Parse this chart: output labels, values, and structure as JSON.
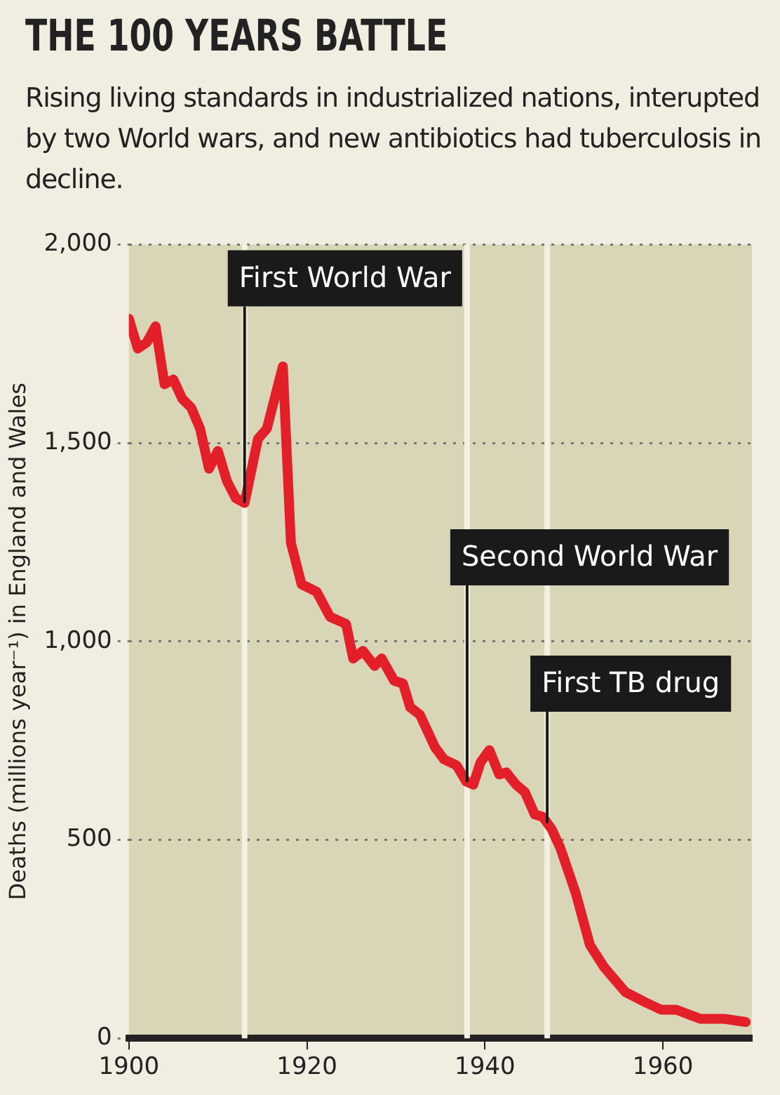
{
  "chart_data": {
    "type": "line",
    "title": "THE 100 YEARS BATTLE",
    "subtitle": "Rising living standards in industrialized nations, interupted by two World wars, and new antibiotics had tuberculosis in decline.",
    "ylabel": "Deaths (millions year⁻¹) in England and Wales",
    "x": [
      1900,
      1901,
      1902,
      1903,
      1904,
      1905,
      1906,
      1907,
      1908,
      1909,
      1910,
      1911,
      1912,
      1913,
      1914.5,
      1915.5,
      1917.3,
      1918.2,
      1919.4,
      1921.1,
      1922.6,
      1924.4,
      1925.2,
      1926.3,
      1927.6,
      1928.4,
      1929.8,
      1930.8,
      1931.6,
      1932.7,
      1934.4,
      1935.4,
      1936.8,
      1937.9,
      1938.7,
      1939.5,
      1940.5,
      1941.6,
      1942.4,
      1943.5,
      1944.5,
      1945.6,
      1946.5,
      1947.5,
      1948.5,
      1950.2,
      1951.8,
      1953.4,
      1955.8,
      1958,
      1959.8,
      1961.5,
      1964.2,
      1966.9,
      1969.3
    ],
    "series": [
      {
        "color": "#e3202a",
        "values": [
          1813,
          1738,
          1753,
          1794,
          1648,
          1660,
          1611,
          1589,
          1536,
          1435,
          1480,
          1405,
          1361,
          1349,
          1510,
          1536,
          1693,
          1249,
          1144,
          1125,
          1062,
          1044,
          957,
          976,
          938,
          957,
          901,
          894,
          834,
          815,
          733,
          703,
          688,
          647,
          639,
          695,
          726,
          665,
          670,
          639,
          620,
          564,
          558,
          527,
          478,
          366,
          235,
          179,
          116,
          91,
          72,
          72,
          49,
          49,
          41
        ]
      }
    ],
    "xlim": [
      1900,
      1970
    ],
    "xticks": [
      1900,
      1920,
      1940,
      1960
    ],
    "ylim": [
      0,
      2000
    ],
    "yticks": [
      0,
      {
        "value": 500,
        "label": "500"
      },
      {
        "value": 1000,
        "label": "1,000"
      },
      {
        "value": 1500,
        "label": "1,500"
      },
      {
        "value": 2000,
        "label": "2,000"
      }
    ],
    "grid": "y",
    "legend": false,
    "marker": "none",
    "line_style": "solid",
    "ref_lines": [
      {
        "axis": "x",
        "value": 1913,
        "label": "First World War",
        "color": "#f4f1e4"
      },
      {
        "axis": "x",
        "value": 1938,
        "label": "Second World War",
        "color": "#f4f1e4"
      },
      {
        "axis": "x",
        "value": 1947,
        "label": "First TB drug",
        "color": "#f4f1e4"
      }
    ]
  }
}
